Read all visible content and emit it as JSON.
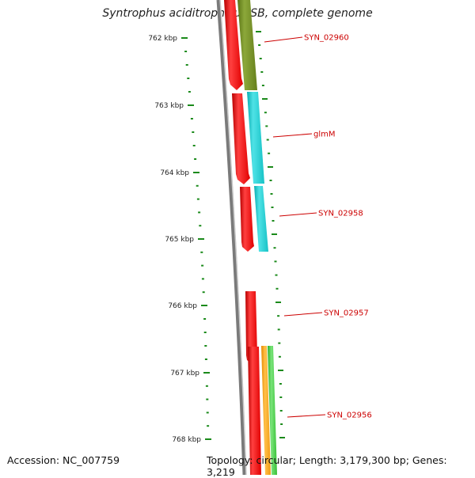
{
  "title": "Syntrophus aciditrophicus SB, complete genome",
  "accession": "Accession: NC_007759",
  "info": "Topology: circular; Length: 3,179,300 bp; Genes: 3,219",
  "ruler": {
    "labels": [
      "762 kbp",
      "763 kbp",
      "764 kbp",
      "765 kbp",
      "766 kbp",
      "767 kbp",
      "768 kbp"
    ],
    "tick_color": "#1a8a1a"
  },
  "genes": [
    {
      "name": "SYN_02960",
      "label_color": "#cc0000"
    },
    {
      "name": "glmM",
      "label_color": "#cc0000"
    },
    {
      "name": "SYN_02958",
      "label_color": "#cc0000"
    },
    {
      "name": "SYN_02957",
      "label_color": "#cc0000"
    },
    {
      "name": "SYN_02956",
      "label_color": "#cc0000"
    }
  ],
  "colors": {
    "cds": "#ff1a1a",
    "olive": "#6e8a1e",
    "cyan": "#1cc8cc",
    "orange": "#f7a01a",
    "green": "#3cc83c",
    "backbone": "#777777"
  }
}
